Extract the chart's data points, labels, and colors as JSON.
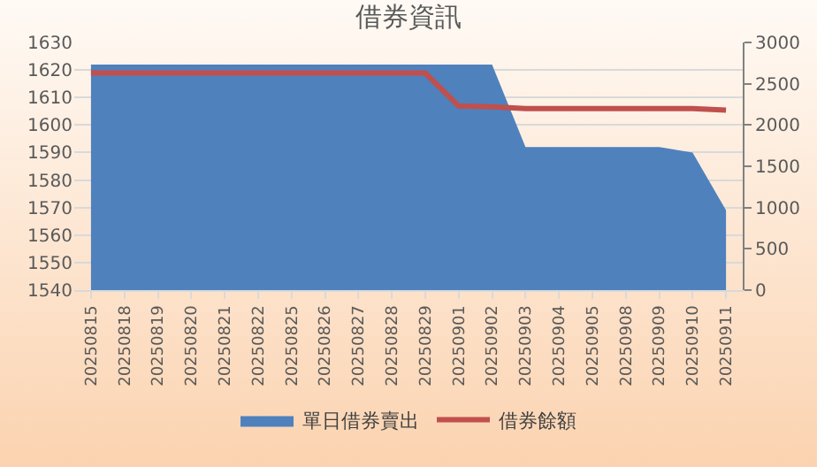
{
  "chart_data": {
    "type": "area",
    "title": "借券資訊",
    "categories": [
      "20250815",
      "20250818",
      "20250819",
      "20250820",
      "20250821",
      "20250822",
      "20250825",
      "20250826",
      "20250827",
      "20250828",
      "20250829",
      "20250901",
      "20250902",
      "20250903",
      "20250904",
      "20250905",
      "20250908",
      "20250909",
      "20250910",
      "20250911"
    ],
    "series": [
      {
        "name": "單日借券賣出",
        "color": "#4f81bd",
        "values": [
          1622,
          1622,
          1622,
          1622,
          1622,
          1622,
          1622,
          1622,
          1622,
          1622,
          1622,
          1622,
          1622,
          1592,
          1592,
          1592,
          1592,
          1592,
          1590,
          1569
        ]
      },
      {
        "name": "借券餘額",
        "type": "line",
        "axis": "y2",
        "color": "#c0504d",
        "values": [
          2630,
          2630,
          2630,
          2630,
          2630,
          2630,
          2630,
          2630,
          2630,
          2630,
          2630,
          2230,
          2220,
          2200,
          2200,
          2200,
          2200,
          2200,
          2200,
          2180
        ]
      }
    ],
    "ylim": [
      1540,
      1630
    ],
    "yticks": [
      1540,
      1550,
      1560,
      1570,
      1580,
      1590,
      1600,
      1610,
      1620,
      1630
    ],
    "y2lim": [
      0,
      3000
    ],
    "y2ticks": [
      0,
      500,
      1000,
      1500,
      2000,
      2500,
      3000
    ],
    "grid": "y",
    "legend": "bottom",
    "marker": "none",
    "line_style": "solid"
  }
}
